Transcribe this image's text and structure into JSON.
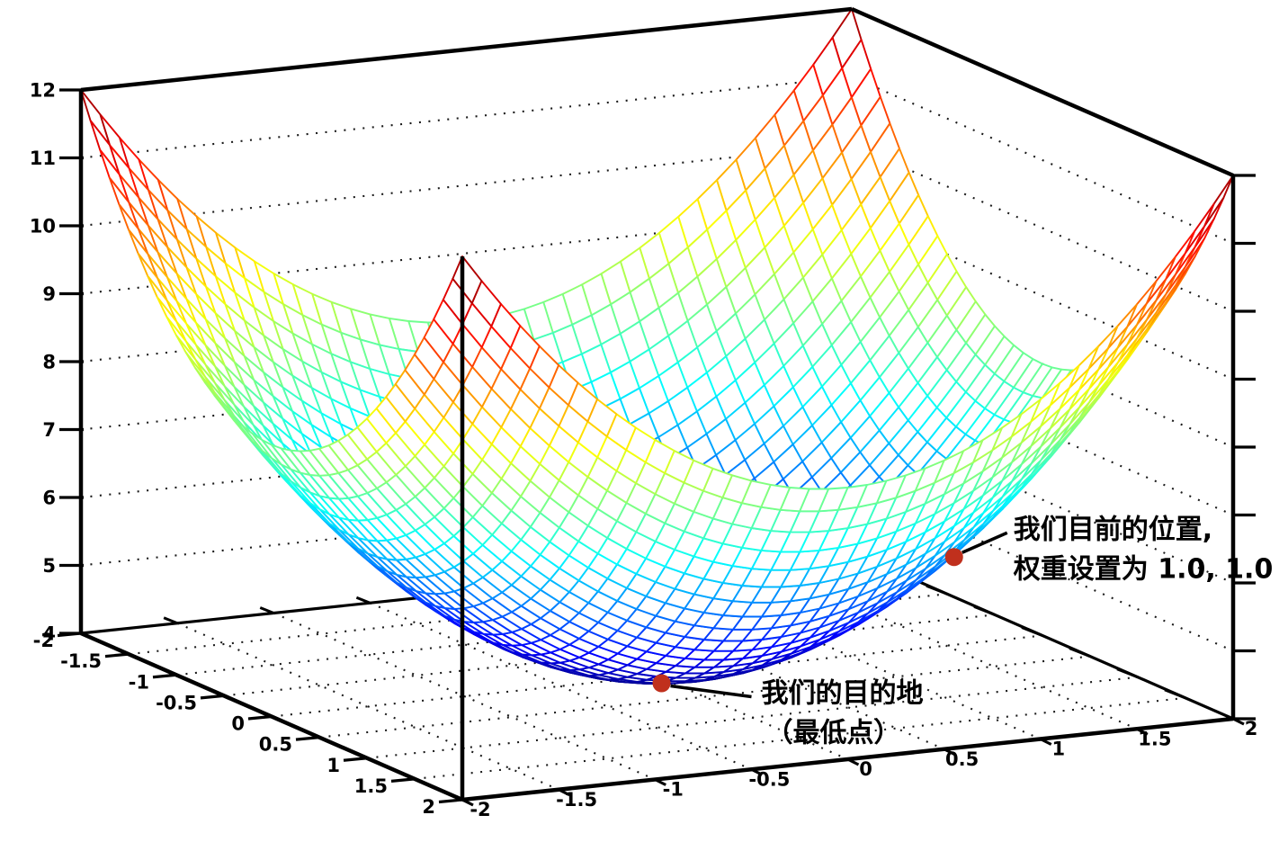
{
  "page": {
    "background": "#ffffff"
  },
  "chart_data": {
    "type": "surface",
    "title": "",
    "x_range": [
      -2,
      2
    ],
    "y_range": [
      -2,
      2
    ],
    "z_range": [
      4,
      12
    ],
    "x_ticks": {
      "values": [
        -2,
        -1.5,
        -1,
        -0.5,
        0,
        0.5,
        1,
        1.5,
        2
      ],
      "labels": [
        "-2",
        "-1.5",
        "-1",
        "-0.5",
        "0",
        "0.5",
        "1",
        "1.5",
        "2"
      ]
    },
    "y_ticks": {
      "values": [
        -2,
        -1.5,
        -1,
        -0.5,
        0,
        0.5,
        1,
        1.5,
        2
      ],
      "labels": [
        "-2",
        "-1.5",
        "-1",
        "-0.5",
        "0",
        "0.5",
        "1",
        "1.5",
        "2"
      ]
    },
    "z_ticks": {
      "values": [
        4,
        5,
        6,
        7,
        8,
        9,
        10,
        11,
        12
      ],
      "labels": [
        "4",
        "5",
        "6",
        "7",
        "8",
        "9",
        "10",
        "11",
        "12"
      ]
    },
    "z_function": {
      "form": "z = x^2 + y^2 + c",
      "x2": 1,
      "y2": 1,
      "c": 4
    },
    "mesh_divisions": 40,
    "colormap": "jet",
    "grid": true,
    "colors": {
      "annotation_dot": "#c0301d",
      "axis": "#000000",
      "grid_dots": "#1a1a1a"
    },
    "annotations": [
      {
        "id": "current-position",
        "x": 1,
        "y": 1,
        "z": 6,
        "lines": [
          "我们目前的位置,",
          "权重设置为 1.0, 1.0"
        ]
      },
      {
        "id": "destination",
        "x": 0,
        "y": 0,
        "z": 4,
        "lines": [
          "我们的目的地",
          "（最低点）"
        ]
      }
    ]
  }
}
